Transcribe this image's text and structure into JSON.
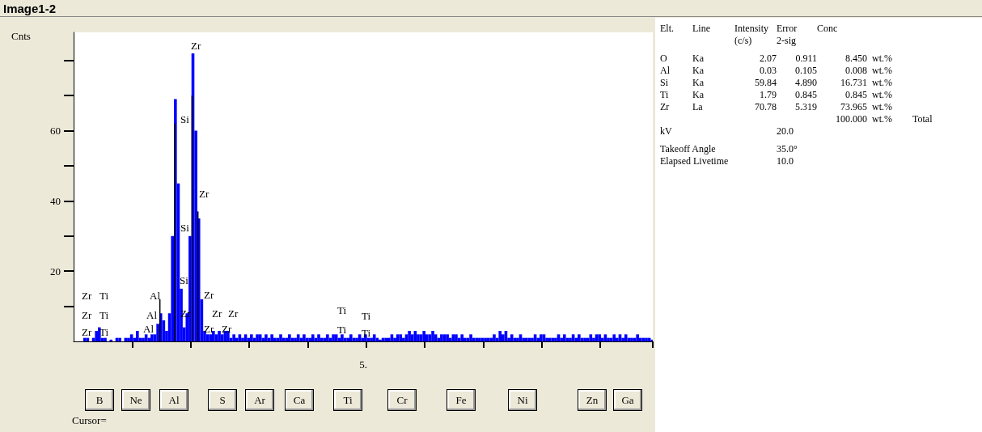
{
  "chart_data": [
    {
      "type": "bar",
      "title": "Image1-2",
      "ylabel": "Cnts",
      "xlabel": "5.",
      "categories": [
        null,
        null,
        null,
        null,
        null,
        null,
        null,
        null,
        null,
        null,
        null,
        null,
        null,
        null,
        null,
        null,
        null,
        null,
        null,
        null,
        null,
        null,
        null,
        null,
        null,
        null,
        null,
        null,
        null,
        null,
        null,
        null,
        null,
        null,
        null,
        null,
        null,
        null,
        null,
        null,
        null,
        null,
        null,
        null,
        null,
        null,
        null,
        null,
        null,
        null,
        null,
        null,
        null,
        null,
        null,
        null,
        null,
        null,
        null,
        null,
        null,
        null,
        null,
        null,
        null,
        null,
        null,
        null,
        null,
        null,
        null,
        null,
        null,
        null,
        null,
        null,
        null,
        null,
        null,
        null,
        null,
        null,
        null,
        null,
        null,
        null,
        null,
        null,
        null,
        null,
        null,
        null,
        null,
        null,
        null,
        null,
        null,
        null,
        null,
        null,
        null,
        null,
        null,
        null,
        null,
        null,
        null,
        null,
        null,
        null,
        null,
        null,
        null,
        null,
        null,
        null,
        null,
        null,
        null,
        null,
        null,
        null,
        null,
        null,
        null,
        null,
        null,
        null,
        null,
        null,
        null,
        null,
        null,
        null,
        null,
        null,
        null,
        null,
        null,
        null,
        null,
        null,
        null,
        null,
        null,
        null,
        null,
        null,
        null,
        null,
        null,
        null,
        null,
        null,
        null,
        null,
        null,
        null,
        null,
        null,
        null,
        null,
        null,
        null,
        null,
        null,
        null,
        null,
        null,
        null,
        null,
        null,
        null,
        null,
        null,
        null,
        null,
        null,
        null,
        null,
        null,
        null,
        null,
        null,
        null,
        null,
        null,
        null,
        null,
        null,
        null,
        null,
        null,
        null,
        null,
        null,
        null,
        null
      ],
      "ylim": [
        0,
        88
      ],
      "yticks": [
        {
          "value": 10,
          "label": null
        },
        20,
        {
          "value": 30,
          "label": null
        },
        40,
        {
          "value": 50,
          "label": null
        },
        60,
        {
          "value": 70,
          "label": null
        },
        {
          "value": 80,
          "label": null
        }
      ],
      "series": [
        {
          "color": "#0000ff",
          "values": [
            0,
            0,
            0,
            1,
            1,
            0,
            1,
            3,
            4,
            1,
            1,
            0,
            0.5,
            0,
            1,
            1,
            0,
            1,
            1,
            2,
            1,
            3,
            1,
            1,
            2,
            1,
            2,
            2,
            5,
            8,
            6,
            3,
            8,
            30,
            69,
            45,
            15,
            4,
            8,
            30,
            82,
            60,
            35,
            12,
            3,
            2,
            2,
            3,
            2,
            3,
            2,
            3,
            3,
            1,
            2,
            1,
            2,
            1,
            2,
            1,
            2,
            1,
            2,
            2,
            1,
            2,
            1,
            2,
            1,
            1,
            2,
            1,
            1,
            2,
            1,
            1,
            2,
            1,
            2,
            1,
            1,
            2,
            1,
            2,
            1,
            1,
            2,
            1,
            2,
            2,
            1,
            2,
            1,
            1,
            2,
            1,
            1,
            2,
            1,
            2,
            1,
            1,
            2,
            1,
            0.5,
            1,
            1,
            1,
            2,
            1,
            2,
            2,
            1,
            2,
            3,
            2,
            3,
            2,
            2,
            3,
            2,
            2,
            3,
            2,
            1,
            2,
            2,
            2,
            1,
            2,
            2,
            1,
            2,
            1,
            1,
            2,
            1,
            1,
            1,
            1,
            1,
            1,
            1,
            2,
            1,
            3,
            2,
            3,
            1,
            2,
            1,
            1,
            2,
            1,
            1,
            1,
            1,
            2,
            1,
            2,
            2,
            1,
            1,
            1,
            1,
            2,
            1,
            2,
            1,
            1,
            2,
            1,
            2,
            1,
            1,
            1,
            2,
            1,
            2,
            2,
            1,
            2,
            1,
            1,
            2,
            1,
            2,
            1,
            2,
            1,
            1,
            1,
            2,
            1,
            1,
            1,
            1,
            0.5
          ]
        },
        {
          "color": "#000000",
          "values": [
            null,
            null,
            null,
            null,
            null,
            null,
            null,
            null,
            null,
            null,
            null,
            null,
            null,
            null,
            null,
            null,
            null,
            null,
            null,
            null,
            null,
            null,
            null,
            null,
            null,
            null,
            null,
            null,
            null,
            12,
            null,
            null,
            null,
            null,
            62,
            null,
            null,
            null,
            null,
            null,
            70,
            null,
            37,
            null,
            null,
            null,
            null,
            null,
            null,
            null,
            null,
            null,
            null,
            null,
            null,
            null,
            null,
            null,
            null,
            null,
            null,
            null,
            null,
            null,
            null,
            null,
            null,
            null,
            null,
            null,
            null,
            null,
            null,
            null,
            null,
            null,
            null,
            null,
            null,
            null,
            null,
            null,
            null,
            null,
            null,
            null,
            null,
            null,
            null,
            null,
            null,
            null,
            null,
            null,
            null,
            null,
            null,
            null,
            null,
            null,
            null,
            null,
            null,
            null,
            null,
            null,
            null,
            null,
            null,
            null,
            null,
            null,
            null,
            null,
            null,
            null,
            null,
            null,
            null,
            null,
            null,
            null,
            null,
            null,
            null,
            null,
            null,
            null,
            null,
            null,
            null,
            null,
            null,
            null,
            null,
            null,
            null,
            null,
            null,
            null,
            null,
            null,
            null,
            null,
            null,
            null,
            null,
            null,
            null,
            null,
            null,
            null,
            null,
            null,
            null,
            null,
            null,
            null,
            null,
            null,
            null,
            null,
            null,
            null,
            null,
            null,
            null,
            null,
            null,
            null,
            null,
            null,
            null,
            null,
            null,
            null,
            null,
            null,
            null,
            null,
            null,
            null,
            null,
            null,
            null,
            null,
            null,
            null,
            null,
            null,
            null,
            null,
            null,
            null,
            null,
            null,
            null,
            null
          ]
        }
      ],
      "annotations": [
        "Zr",
        "Ti",
        "Zr",
        "Ti",
        "Zr",
        "Ti",
        "Al",
        "Al",
        "Al",
        "Si",
        "Si",
        "Si",
        "Zr",
        "Zr",
        "Zr",
        "Zr",
        "Zr",
        "Zr",
        "Zr",
        "Zr",
        "Ti",
        "Ti",
        "Ti",
        "Ti",
        "B",
        "Ne",
        "Al",
        "S",
        "Ar",
        "Ca",
        "Ti",
        "Cr",
        "Fe",
        "Ni",
        "Zn",
        "Ga",
        "Cursor="
      ]
    },
    {
      "type": "other",
      "annotations": [
        "Elt.\tLine\tIntensity\tError\tConc\t\t",
        "\t\t(c/s)\t2-sig\t\t\t",
        "O\tKa\t2.07\t0.911\t8.450\twt.%\t",
        "Al\tKa\t0.03\t0.105\t0.008\twt.%\t",
        "Si\tKa\t59.84\t4.890\t16.731\twt.%\t",
        "Ti\tKa\t1.79\t0.845\t0.845\twt.%\t",
        "Zr\tLa\t70.78\t5.319\t73.965\twt.%\t",
        "\t\t\t\t100.000\twt.%\tTotal",
        "kV\t\t20.0",
        "Takeoff Angle\t\t35.0°",
        "Elapsed Livetime\t\t10.0"
      ]
    }
  ]
}
